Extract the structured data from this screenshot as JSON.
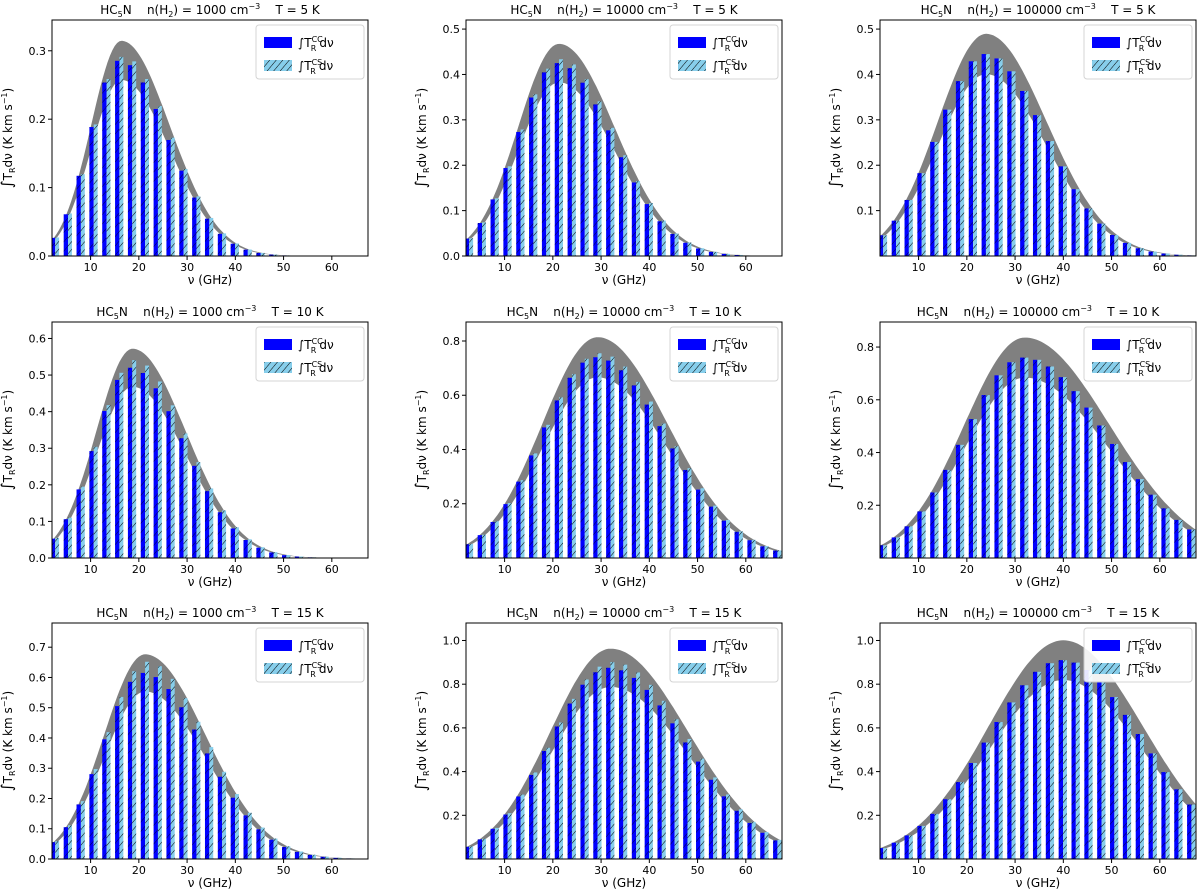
{
  "figure": {
    "molecule": "HC",
    "molecule_sub": "5",
    "molecule_tail": "N",
    "density_prefix": "n(H",
    "density_sub": "2",
    "density_mid": ") = ",
    "density_unit": " cm",
    "density_exp": "−3",
    "xlabel": "ν (GHz)",
    "ylabel_int": "∫",
    "ylabel_T": "T",
    "ylabel_sub": "R",
    "ylabel_rest": "dν (K km s",
    "ylabel_exp": "−1",
    "ylabel_close": ")",
    "legend_cc_int": "∫T",
    "legend_cc_sup": "CC",
    "legend_sub": "R",
    "legend_dv": "dν",
    "legend_cs_sup": "CS",
    "colors": {
      "cc_bar": "#0000ff",
      "cs_bar": "#87ceeb",
      "band": "#808080",
      "hatch": "#000000"
    }
  },
  "chart_data": [
    {
      "type": "bar",
      "density": "1000",
      "temperature": "T = 5 K",
      "peak_x": 16.4,
      "peak_y": 0.286,
      "sigma_lo": 6.3,
      "sigma_hi": 10.0,
      "band_rel": 0.1,
      "cs_rel": 0.02,
      "xlim": [
        2.0,
        67.5
      ],
      "ylim": [
        0,
        0.345
      ],
      "yticks": [
        0.0,
        0.1,
        0.2,
        0.3
      ],
      "ytick_labels": [
        "0.0",
        "0.1",
        "0.2",
        "0.3"
      ],
      "xticks": [
        10,
        20,
        30,
        40,
        50,
        60
      ],
      "xtick_labels": [
        "10",
        "20",
        "30",
        "40",
        "50",
        "60"
      ]
    },
    {
      "type": "bar",
      "density": "10000",
      "temperature": "T = 5 K",
      "peak_x": 21.3,
      "peak_y": 0.425,
      "sigma_lo": 8.5,
      "sigma_hi": 11.5,
      "band_rel": 0.1,
      "cs_rel": 0.02,
      "xlim": [
        2.0,
        67.5
      ],
      "ylim": [
        0,
        0.52
      ],
      "yticks": [
        0.0,
        0.1,
        0.2,
        0.3,
        0.4,
        0.5
      ],
      "ytick_labels": [
        "0.0",
        "0.1",
        "0.2",
        "0.3",
        "0.4",
        "0.5"
      ],
      "xticks": [
        10,
        20,
        30,
        40,
        50,
        60
      ],
      "xtick_labels": [
        "10",
        "20",
        "30",
        "40",
        "50",
        "60"
      ]
    },
    {
      "type": "bar",
      "density": "100000",
      "temperature": "T = 5 K",
      "peak_x": 24.0,
      "peak_y": 0.445,
      "sigma_lo": 10.0,
      "sigma_hi": 12.5,
      "band_rel": 0.1,
      "cs_rel": 0.0,
      "xlim": [
        2.0,
        67.5
      ],
      "ylim": [
        0,
        0.52
      ],
      "yticks": [
        0.1,
        0.2,
        0.3,
        0.4,
        0.5
      ],
      "ytick_labels": [
        "0.1",
        "0.2",
        "0.3",
        "0.4",
        "0.5"
      ],
      "xticks": [
        10,
        20,
        30,
        40,
        50,
        60
      ],
      "xtick_labels": [
        "10",
        "20",
        "30",
        "40",
        "50",
        "60"
      ]
    },
    {
      "type": "bar",
      "density": "1000",
      "temperature": "T = 10 K",
      "peak_x": 18.7,
      "peak_y": 0.52,
      "sigma_lo": 7.5,
      "sigma_hi": 11.0,
      "band_rel": 0.1,
      "cs_rel": 0.04,
      "xlim": [
        2.0,
        67.5
      ],
      "ylim": [
        0,
        0.645
      ],
      "yticks": [
        0.0,
        0.1,
        0.2,
        0.3,
        0.4,
        0.5,
        0.6
      ],
      "ytick_labels": [
        "0.0",
        "0.1",
        "0.2",
        "0.3",
        "0.4",
        "0.5",
        "0.6"
      ],
      "xticks": [
        10,
        20,
        30,
        40,
        50,
        60
      ],
      "xtick_labels": [
        "10",
        "20",
        "30",
        "40",
        "50",
        "60"
      ]
    },
    {
      "type": "bar",
      "density": "10000",
      "temperature": "T = 10 K",
      "peak_x": 29.3,
      "peak_y": 0.74,
      "sigma_lo": 11.5,
      "sigma_hi": 14.5,
      "band_rel": 0.1,
      "cs_rel": 0.02,
      "xlim": [
        2.0,
        67.5
      ],
      "ylim": [
        0,
        0.87
      ],
      "yticks": [
        0.2,
        0.4,
        0.6,
        0.8
      ],
      "ytick_labels": [
        "0.2",
        "0.4",
        "0.6",
        "0.8"
      ],
      "xticks": [
        10,
        20,
        30,
        40,
        50,
        60
      ],
      "xtick_labels": [
        "10",
        "20",
        "30",
        "40",
        "50",
        "60"
      ]
    },
    {
      "type": "bar",
      "density": "100000",
      "temperature": "T = 10 K",
      "peak_x": 32.0,
      "peak_y": 0.76,
      "sigma_lo": 12.5,
      "sigma_hi": 17.5,
      "band_rel": 0.1,
      "cs_rel": 0.0,
      "xlim": [
        2.0,
        67.5
      ],
      "ylim": [
        0,
        0.895
      ],
      "yticks": [
        0.2,
        0.4,
        0.6,
        0.8
      ],
      "ytick_labels": [
        "0.2",
        "0.4",
        "0.6",
        "0.8"
      ],
      "xticks": [
        10,
        20,
        30,
        40,
        50,
        60
      ],
      "xtick_labels": [
        "10",
        "20",
        "30",
        "40",
        "50",
        "60"
      ]
    },
    {
      "type": "bar",
      "density": "1000",
      "temperature": "T = 15 K",
      "peak_x": 21.3,
      "peak_y": 0.615,
      "sigma_lo": 8.5,
      "sigma_hi": 12.5,
      "band_rel": 0.1,
      "cs_rel": 0.06,
      "xlim": [
        2.0,
        67.5
      ],
      "ylim": [
        0,
        0.78
      ],
      "yticks": [
        0.0,
        0.1,
        0.2,
        0.3,
        0.4,
        0.5,
        0.6,
        0.7
      ],
      "ytick_labels": [
        "0.0",
        "0.1",
        "0.2",
        "0.3",
        "0.4",
        "0.5",
        "0.6",
        "0.7"
      ],
      "xticks": [
        10,
        20,
        30,
        40,
        50,
        60
      ],
      "xtick_labels": [
        "10",
        "20",
        "30",
        "40",
        "50",
        "60"
      ]
    },
    {
      "type": "bar",
      "density": "10000",
      "temperature": "T = 15 K",
      "peak_x": 32.0,
      "peak_y": 0.875,
      "sigma_lo": 12.5,
      "sigma_hi": 16.0,
      "band_rel": 0.1,
      "cs_rel": 0.03,
      "xlim": [
        2.0,
        67.5
      ],
      "ylim": [
        0,
        1.08
      ],
      "yticks": [
        0.2,
        0.4,
        0.6,
        0.8,
        1.0
      ],
      "ytick_labels": [
        "0.2",
        "0.4",
        "0.6",
        "0.8",
        "1.0"
      ],
      "xticks": [
        10,
        20,
        30,
        40,
        50,
        60
      ],
      "xtick_labels": [
        "10",
        "20",
        "30",
        "40",
        "50",
        "60"
      ]
    },
    {
      "type": "bar",
      "density": "100000",
      "temperature": "T = 15 K",
      "peak_x": 40.0,
      "peak_y": 0.91,
      "sigma_lo": 15.5,
      "sigma_hi": 16.5,
      "band_rel": 0.1,
      "cs_rel": 0.0,
      "xlim": [
        2.0,
        67.5
      ],
      "ylim": [
        0,
        1.08
      ],
      "yticks": [
        0.2,
        0.4,
        0.6,
        0.8,
        1.0
      ],
      "ytick_labels": [
        "0.2",
        "0.4",
        "0.6",
        "0.8",
        "1.0"
      ],
      "xticks": [
        10,
        20,
        30,
        40,
        50,
        60
      ],
      "xtick_labels": [
        "10",
        "20",
        "30",
        "40",
        "50",
        "60"
      ]
    }
  ]
}
